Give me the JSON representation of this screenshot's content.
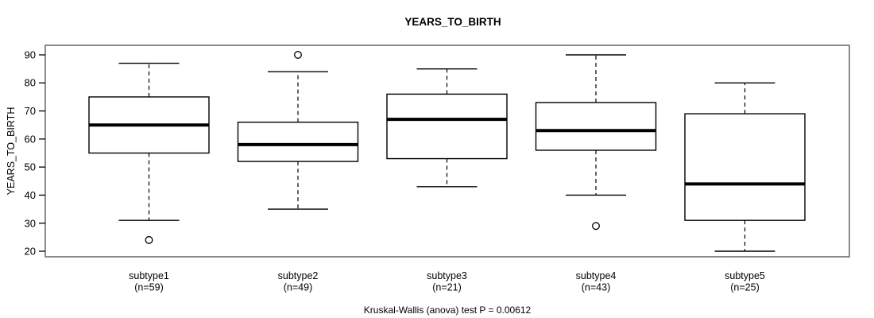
{
  "title": "YEARS_TO_BIRTH",
  "footer": "Kruskal-Wallis (anova) test P = 0.00612",
  "chart_data": {
    "type": "boxplot",
    "title": "YEARS_TO_BIRTH",
    "xlabel": "",
    "ylabel": "YEARS_TO_BIRTH",
    "ylim": [
      18,
      93
    ],
    "yticks": [
      20,
      30,
      40,
      50,
      60,
      70,
      80,
      90
    ],
    "grid": false,
    "legend": "none",
    "annotation": "Kruskal-Wallis (anova) test P = 0.00612",
    "categories": [
      "subtype1",
      "subtype2",
      "subtype3",
      "subtype4",
      "subtype5"
    ],
    "category_sublabels": [
      "(n=59)",
      "(n=49)",
      "(n=21)",
      "(n=43)",
      "(n=25)"
    ],
    "series": [
      {
        "label": "subtype1",
        "n": 59,
        "whisker_low": 31,
        "q1": 55,
        "median": 65,
        "q3": 75,
        "whisker_high": 87,
        "outliers": [
          24
        ]
      },
      {
        "label": "subtype2",
        "n": 49,
        "whisker_low": 35,
        "q1": 52,
        "median": 58,
        "q3": 66,
        "whisker_high": 84,
        "outliers": [
          90
        ]
      },
      {
        "label": "subtype3",
        "n": 21,
        "whisker_low": 43,
        "q1": 53,
        "median": 67,
        "q3": 76,
        "whisker_high": 85,
        "outliers": []
      },
      {
        "label": "subtype4",
        "n": 43,
        "whisker_low": 40,
        "q1": 56,
        "median": 63,
        "q3": 73,
        "whisker_high": 90,
        "outliers": [
          29
        ]
      },
      {
        "label": "subtype5",
        "n": 25,
        "whisker_low": 20,
        "q1": 31,
        "median": 44,
        "q3": 69,
        "whisker_high": 80,
        "outliers": []
      }
    ],
    "colors": {
      "box_fill": "#ffffff",
      "line": "#000000",
      "plot_border": "#6e6e6e",
      "background": "#ffffff"
    }
  }
}
